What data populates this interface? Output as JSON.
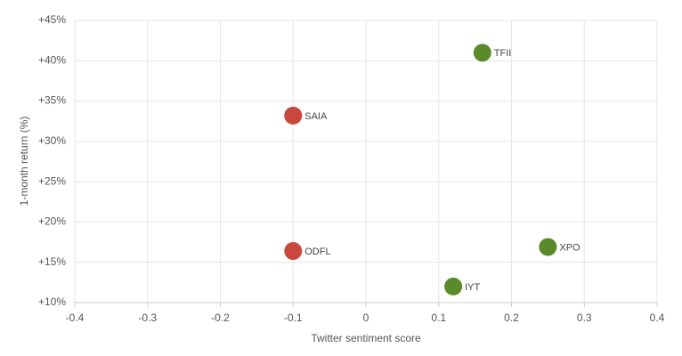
{
  "chart_data": {
    "type": "scatter",
    "x_label": "Twitter sentiment score",
    "y_label": "1-month return (%)",
    "xlim": [
      -0.4,
      0.4
    ],
    "xticks": [
      -0.4,
      -0.3,
      -0.2,
      -0.1,
      0,
      0.1,
      0.2,
      0.3,
      0.4
    ],
    "ylim": [
      10,
      45
    ],
    "yticks": [
      {
        "value": 10,
        "label": "+10%"
      },
      {
        "value": 15,
        "label": "+15%"
      },
      {
        "value": 20,
        "label": "+20%"
      },
      {
        "value": 25,
        "label": "+25%"
      },
      {
        "value": 30,
        "label": "+30%"
      },
      {
        "value": 35,
        "label": "+35%"
      },
      {
        "value": 40,
        "label": "+40%"
      },
      {
        "value": 45,
        "label": "+45%"
      }
    ],
    "grid": true,
    "points": [
      {
        "label": "TFII",
        "x": 0.16,
        "y": 41.0,
        "color": "#5b8a2b"
      },
      {
        "label": "SAIA",
        "x": -0.1,
        "y": 33.2,
        "color": "#c9483d"
      },
      {
        "label": "ODFL",
        "x": -0.1,
        "y": 16.4,
        "color": "#c9483d"
      },
      {
        "label": "XPO",
        "x": 0.25,
        "y": 16.9,
        "color": "#5b8a2b"
      },
      {
        "label": "IYT",
        "x": 0.12,
        "y": 12.0,
        "color": "#5b8a2b"
      }
    ]
  }
}
